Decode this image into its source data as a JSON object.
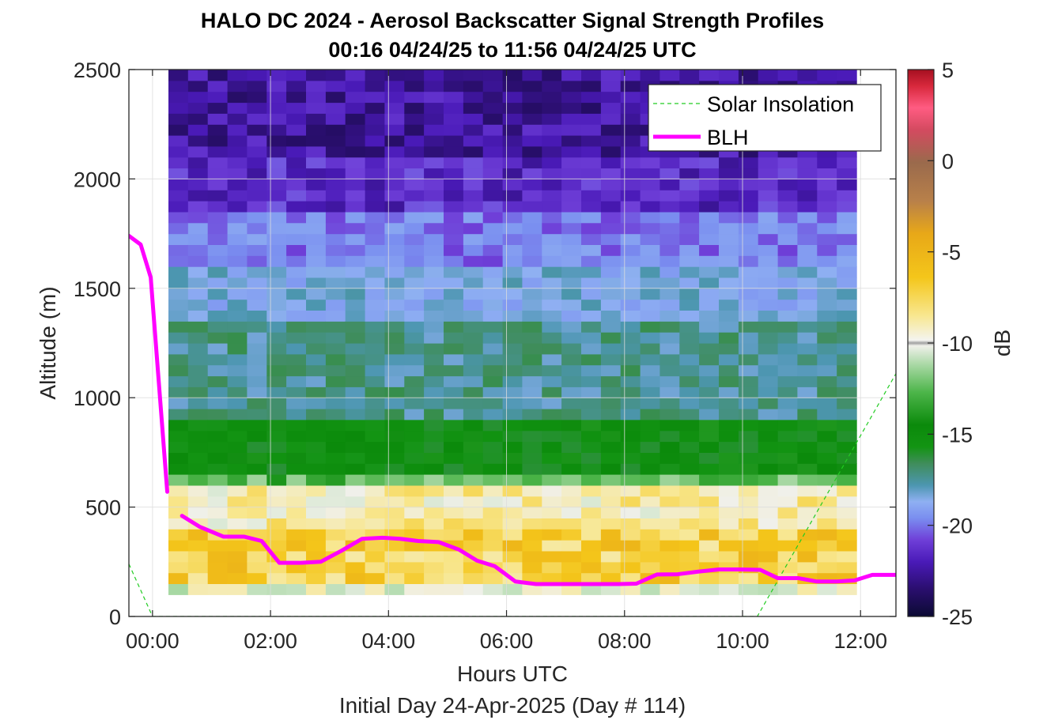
{
  "chart_data": {
    "type": "heatmap",
    "title": "HALO DC 2024 - Aerosol Backscatter Signal Strength Profiles",
    "subtitle": "00:16 04/24/25 to 11:56 04/24/25  UTC",
    "xlabel": "Hours UTC",
    "xlabel2": "Initial Day 24-Apr-2025 (Day # 114)",
    "ylabel": "Altitude (m)",
    "colorbar_label": "dB",
    "xlim": [
      -0.4,
      12.6
    ],
    "ylim": [
      0,
      2500
    ],
    "clim": [
      -25,
      5
    ],
    "x_ticks": [
      0,
      2,
      4,
      6,
      8,
      10,
      12
    ],
    "x_tick_labels": [
      "00:00",
      "02:00",
      "04:00",
      "06:00",
      "08:00",
      "10:00",
      "12:00"
    ],
    "y_ticks": [
      0,
      500,
      1000,
      1500,
      2000,
      2500
    ],
    "y_tick_labels": [
      "0",
      "500",
      "1000",
      "1500",
      "2000",
      "2500"
    ],
    "colorbar_ticks": [
      5,
      0,
      -5,
      -10,
      -15,
      -20,
      -25
    ],
    "colorbar_tick_labels": [
      "5",
      "0",
      "-5",
      "-10",
      "-15",
      "-20",
      "-25"
    ],
    "grid": true,
    "legend_position": "top-right",
    "heatmap": {
      "x_start": 0.27,
      "x_end": 11.93,
      "y_start": 100,
      "y_end": 2500,
      "row_height_m": 50,
      "layer_profile": [
        {
          "top": 150,
          "value": -8
        },
        {
          "top": 380,
          "value": -5.5
        },
        {
          "top": 560,
          "value": -7
        },
        {
          "top": 650,
          "value": -10.5
        },
        {
          "top": 900,
          "value": -13
        },
        {
          "top": 1350,
          "value": -16
        },
        {
          "top": 1600,
          "value": -17.5
        },
        {
          "top": 1850,
          "value": -19.5
        },
        {
          "top": 2100,
          "value": -21.5
        },
        {
          "top": 2500,
          "value": -22.5
        }
      ]
    },
    "series": [
      {
        "name": "Solar Insolation",
        "color": "#22cc22",
        "style": "dashed",
        "x": [
          -0.4,
          -0.2,
          0,
          10.25,
          12.6
        ],
        "y": [
          240,
          120,
          0,
          0,
          1110
        ]
      },
      {
        "name": "BLH",
        "color": "#ff00ff",
        "style": "solid",
        "segments": [
          {
            "x": [
              -0.4,
              -0.2,
              -0.03,
              0.25
            ],
            "y": [
              1740,
              1700,
              1550,
              570
            ]
          },
          {
            "x": [
              0.5,
              0.8,
              1.2,
              1.55,
              1.85,
              2.15,
              2.5,
              2.85,
              3.2,
              3.55,
              3.9,
              4.2,
              4.5,
              4.85,
              5.2,
              5.5,
              5.8,
              6.15,
              6.5,
              6.8,
              7.1,
              7.5,
              7.9,
              8.2,
              8.55,
              8.9,
              9.25,
              9.6,
              9.95,
              10.3,
              10.6,
              10.95,
              11.25,
              11.6,
              11.9,
              12.2,
              12.6
            ],
            "y": [
              460,
              410,
              365,
              365,
              345,
              245,
              245,
              250,
              300,
              355,
              360,
              355,
              345,
              340,
              305,
              255,
              230,
              160,
              148,
              148,
              148,
              148,
              148,
              150,
              192,
              193,
              205,
              215,
              215,
              213,
              175,
              175,
              160,
              160,
              165,
              190,
              190
            ]
          }
        ]
      }
    ],
    "colors": {
      "colormap": [
        "#0b0a33",
        "#2a0e6e",
        "#4a1ab8",
        "#6f3fd8",
        "#7a8ef0",
        "#8fb0f2",
        "#4c96b0",
        "#3f8d5a",
        "#139413",
        "#0b8a0b",
        "#4db54a",
        "#a8d8a4",
        "#f0f0ea",
        "#f8e790",
        "#f4c61a",
        "#e8a818",
        "#b8804a",
        "#9a6a4c",
        "#d44a60",
        "#ff5c82",
        "#d8283c",
        "#a51020"
      ],
      "bad_value": "#a6a6a6",
      "grid": "#dcdcdc"
    }
  }
}
